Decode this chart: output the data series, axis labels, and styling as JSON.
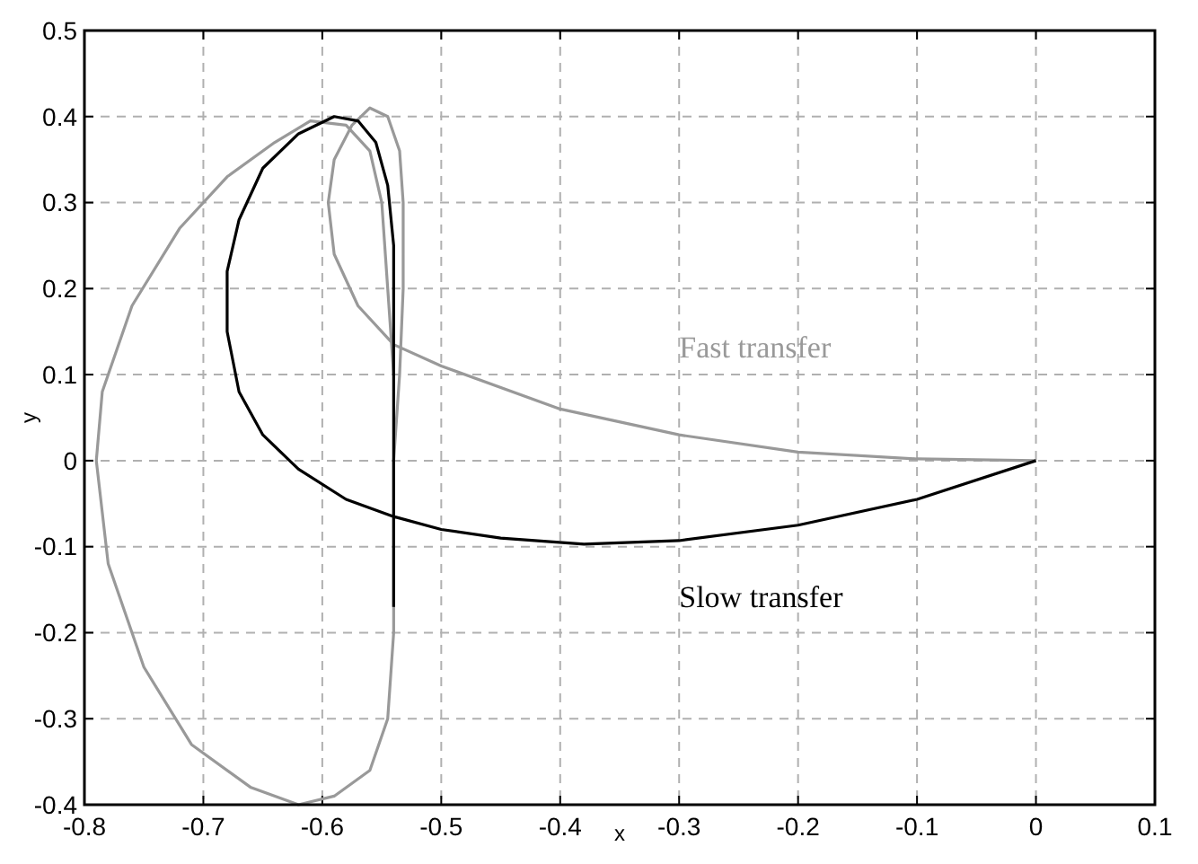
{
  "chart_data": {
    "type": "line",
    "xlabel": "x",
    "ylabel": "y",
    "xlim": [
      -0.8,
      0.1
    ],
    "ylim": [
      -0.4,
      0.5
    ],
    "xticks": [
      -0.8,
      -0.7,
      -0.6,
      -0.5,
      -0.4,
      -0.3,
      -0.2,
      -0.1,
      0,
      0.1
    ],
    "yticks": [
      -0.4,
      -0.3,
      -0.2,
      -0.1,
      0,
      0.1,
      0.2,
      0.3,
      0.4,
      0.5
    ],
    "grid": true,
    "marker": "none",
    "line_style": "solid",
    "series": [
      {
        "name": "Fast transfer",
        "color": "#999999",
        "x": [
          0,
          -0.1,
          -0.2,
          -0.3,
          -0.4,
          -0.5,
          -0.54,
          -0.57,
          -0.59,
          -0.595,
          -0.59,
          -0.575,
          -0.56,
          -0.545,
          -0.535,
          -0.532,
          -0.532,
          -0.535,
          -0.54,
          -0.54,
          -0.545,
          -0.56,
          -0.59,
          -0.62,
          -0.66,
          -0.71,
          -0.75,
          -0.78,
          -0.79,
          -0.785,
          -0.76,
          -0.72,
          -0.68,
          -0.64,
          -0.61,
          -0.58,
          -0.56,
          -0.55,
          -0.545,
          -0.54
        ],
        "values": [
          0,
          0.002,
          0.01,
          0.03,
          0.06,
          0.11,
          0.135,
          0.18,
          0.24,
          0.3,
          0.35,
          0.39,
          0.41,
          0.4,
          0.36,
          0.3,
          0.2,
          0.1,
          0,
          -0.2,
          -0.3,
          -0.36,
          -0.39,
          -0.4,
          -0.38,
          -0.33,
          -0.24,
          -0.12,
          0,
          0.08,
          0.18,
          0.27,
          0.33,
          0.37,
          0.395,
          0.39,
          0.36,
          0.3,
          0.2,
          0.1
        ]
      },
      {
        "name": "Slow transfer",
        "color": "#000000",
        "x": [
          0,
          -0.1,
          -0.2,
          -0.3,
          -0.38,
          -0.45,
          -0.5,
          -0.54,
          -0.58,
          -0.62,
          -0.65,
          -0.67,
          -0.68,
          -0.68,
          -0.67,
          -0.65,
          -0.62,
          -0.59,
          -0.57,
          -0.555,
          -0.545,
          -0.54,
          -0.54,
          -0.54,
          -0.54
        ],
        "values": [
          0,
          -0.045,
          -0.075,
          -0.093,
          -0.097,
          -0.09,
          -0.08,
          -0.065,
          -0.045,
          -0.01,
          0.03,
          0.08,
          0.15,
          0.22,
          0.28,
          0.34,
          0.38,
          0.4,
          0.395,
          0.37,
          0.32,
          0.25,
          0.1,
          -0.07,
          -0.17
        ]
      }
    ]
  }
}
